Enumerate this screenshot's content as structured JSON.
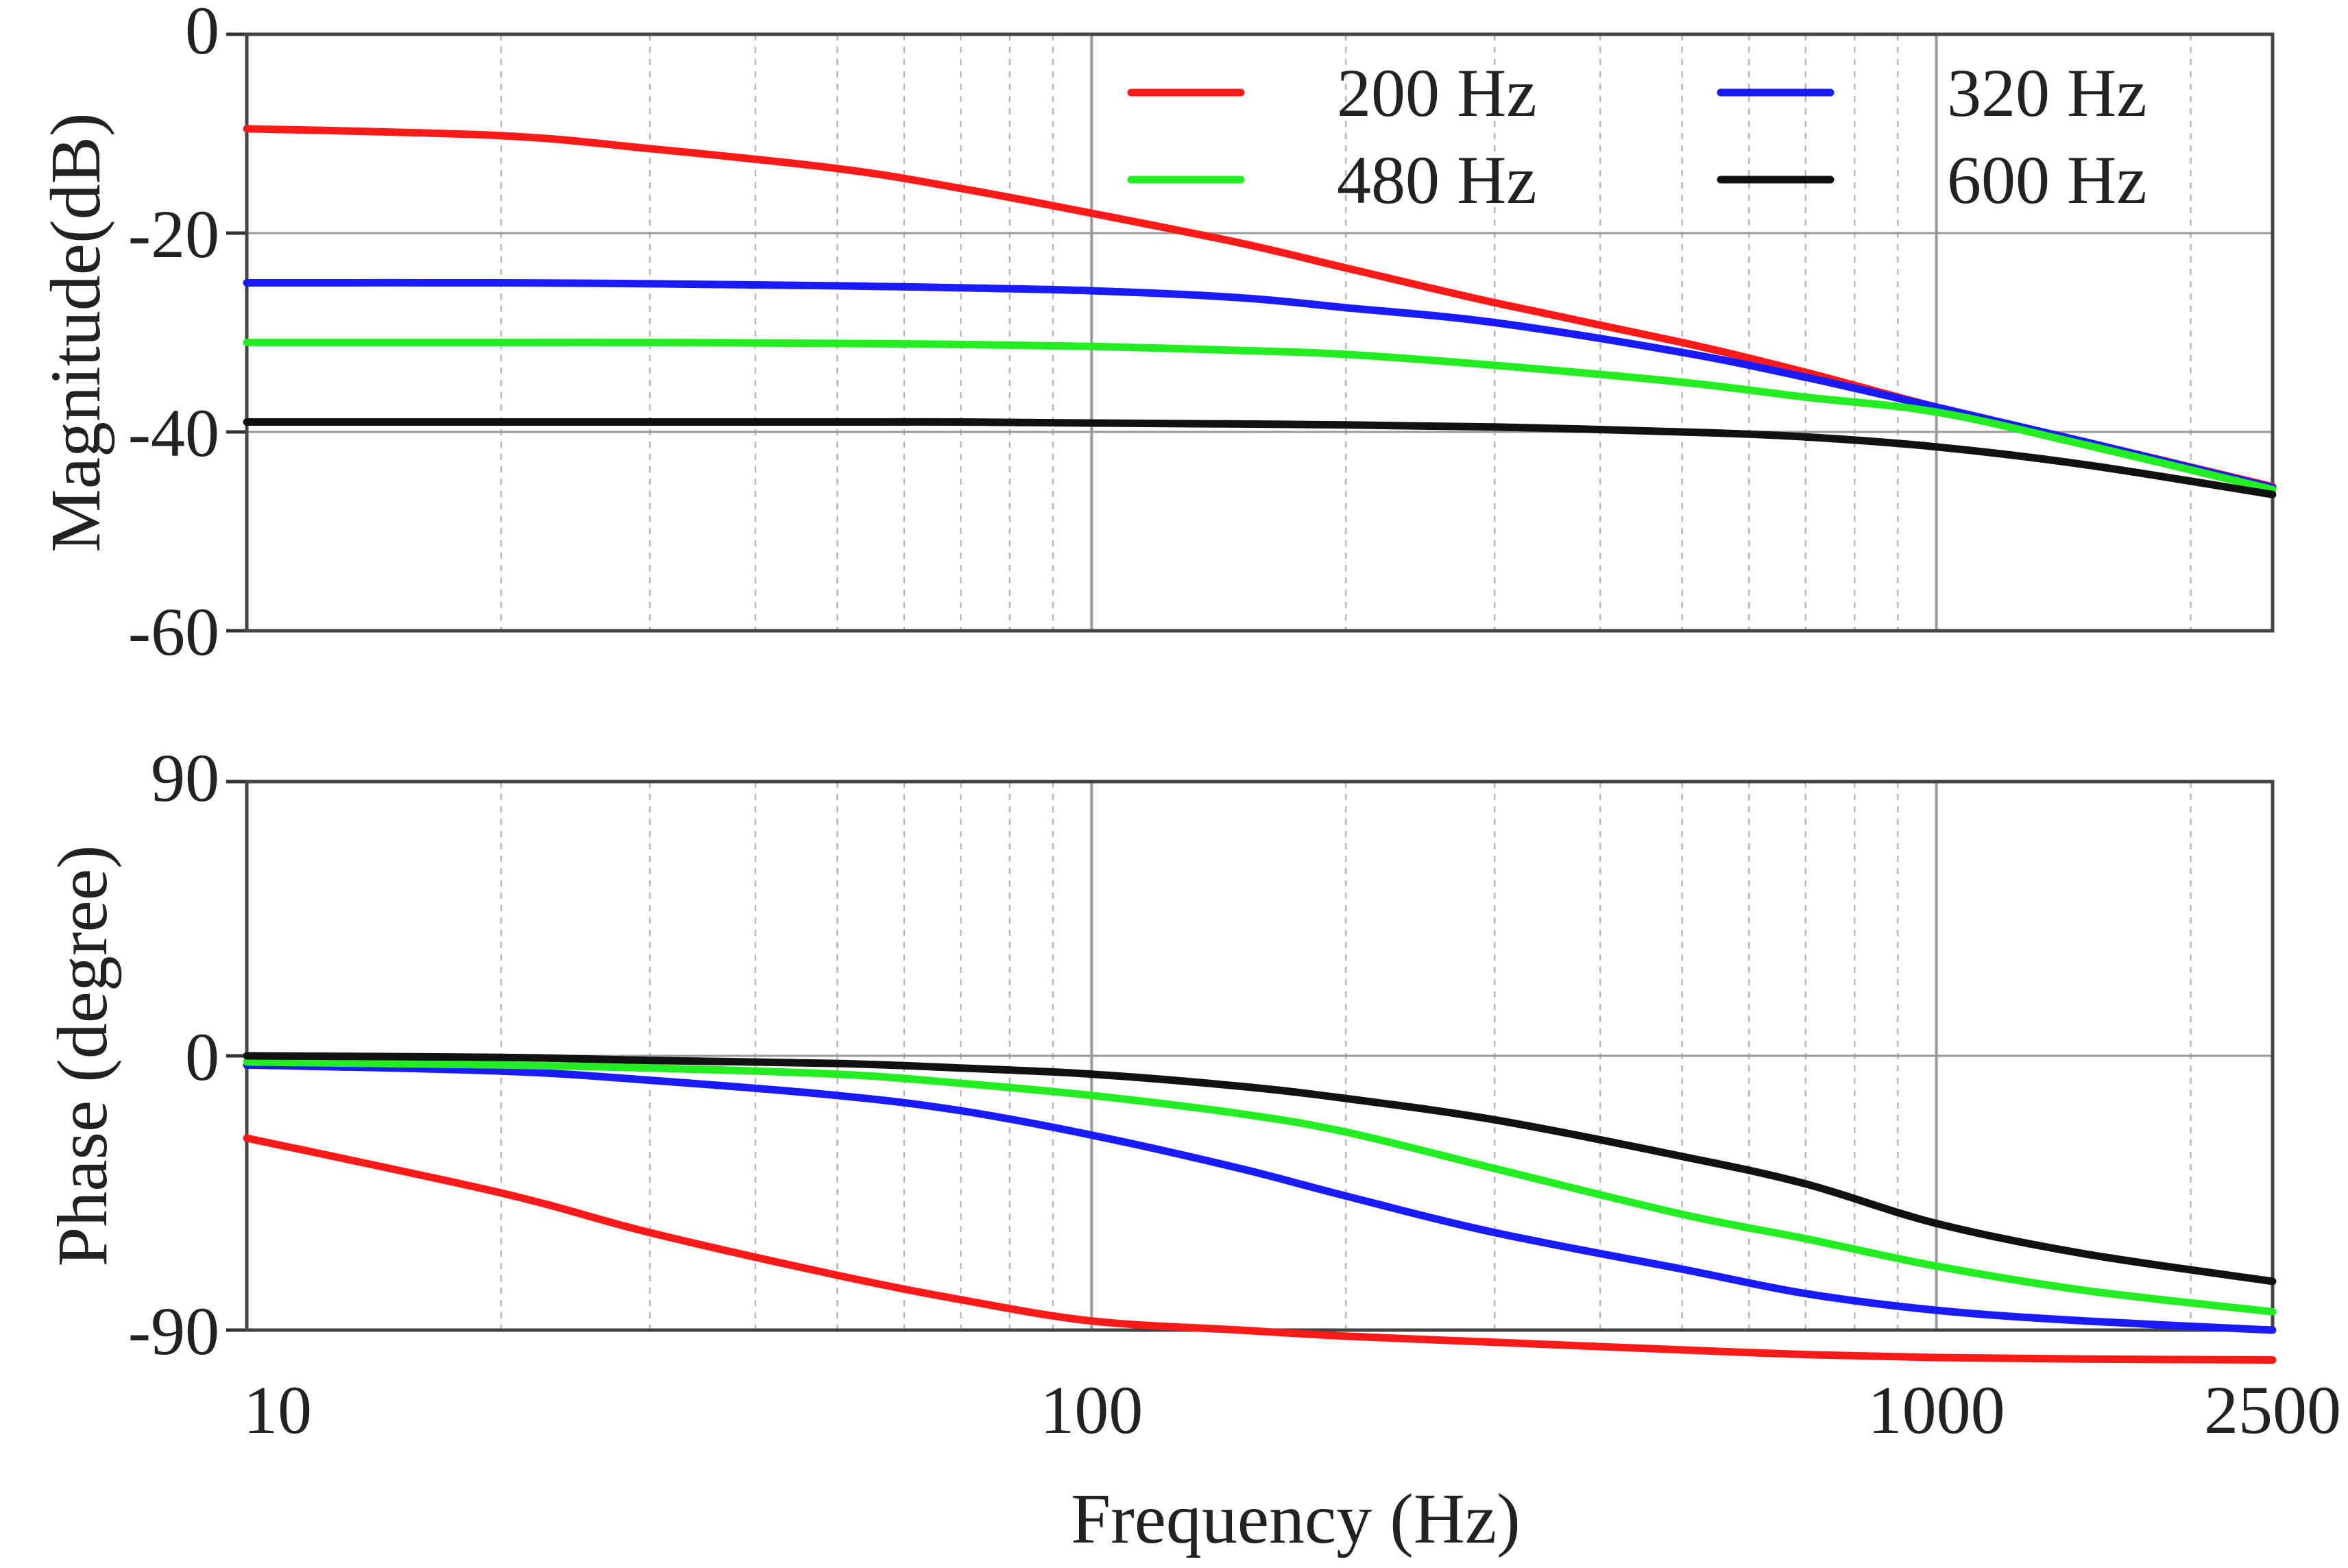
{
  "chart_data": [
    {
      "id": "magnitude",
      "type": "line",
      "title": "",
      "xlabel": "",
      "ylabel": "Magnitude(dB)",
      "xscale": "log",
      "xlim": [
        10,
        2500
      ],
      "ylim": [
        -60,
        0
      ],
      "yticks": [
        0,
        -20,
        -40,
        -60
      ],
      "ytick_labels": [
        "0",
        "-20",
        "-40",
        "-60"
      ],
      "grid": true,
      "legend_position": "top-right",
      "series": [
        {
          "name": "200 Hz",
          "color": "#ff1a1a",
          "x": [
            10,
            20,
            30,
            50,
            70,
            100,
            150,
            200,
            300,
            500,
            700,
            1000,
            1500,
            2500
          ],
          "y": [
            -9.5,
            -10.2,
            -11.5,
            -13.5,
            -15.5,
            -18,
            -21,
            -23.5,
            -27,
            -31,
            -34,
            -37.5,
            -41,
            -45.5
          ]
        },
        {
          "name": "320 Hz",
          "color": "#1a1aff",
          "x": [
            10,
            20,
            30,
            50,
            70,
            100,
            150,
            200,
            300,
            500,
            700,
            1000,
            1500,
            2500
          ],
          "y": [
            -25,
            -25,
            -25.1,
            -25.3,
            -25.5,
            -25.8,
            -26.5,
            -27.5,
            -29,
            -32,
            -34.5,
            -37.5,
            -41,
            -45.6
          ]
        },
        {
          "name": "480 Hz",
          "color": "#22ee22",
          "x": [
            10,
            20,
            30,
            50,
            70,
            100,
            150,
            200,
            300,
            500,
            700,
            1000,
            1500,
            2500
          ],
          "y": [
            -31,
            -31,
            -31,
            -31.1,
            -31.2,
            -31.4,
            -31.8,
            -32.2,
            -33.3,
            -35,
            -36.5,
            -38,
            -41.3,
            -45.8
          ]
        },
        {
          "name": "600 Hz",
          "color": "#111111",
          "x": [
            10,
            20,
            30,
            50,
            70,
            100,
            150,
            200,
            300,
            500,
            700,
            1000,
            1500,
            2500
          ],
          "y": [
            -39,
            -39,
            -39,
            -39,
            -39,
            -39.1,
            -39.2,
            -39.3,
            -39.5,
            -40,
            -40.5,
            -41.5,
            -43.3,
            -46.3
          ]
        }
      ]
    },
    {
      "id": "phase",
      "type": "line",
      "title": "",
      "xlabel": "Frequency (Hz)",
      "ylabel": "Phase (degree)",
      "xscale": "log",
      "xlim": [
        10,
        2500
      ],
      "ylim": [
        -90,
        90
      ],
      "yticks": [
        90,
        0,
        -90
      ],
      "ytick_labels": [
        "90",
        "0",
        "-90"
      ],
      "xticks": [
        10,
        100,
        1000,
        2500
      ],
      "xtick_labels": [
        "10",
        "100",
        "1000",
        "2500"
      ],
      "grid": true,
      "series": [
        {
          "name": "200 Hz",
          "color": "#ff1a1a",
          "x": [
            10,
            20,
            30,
            50,
            70,
            100,
            150,
            200,
            300,
            500,
            700,
            1000,
            1500,
            2500
          ],
          "y": [
            -27,
            -45,
            -58,
            -72,
            -80,
            -87,
            -90,
            -92,
            -94,
            -96.5,
            -98,
            -99,
            -99.5,
            -99.8
          ]
        },
        {
          "name": "320 Hz",
          "color": "#1a1aff",
          "x": [
            10,
            20,
            30,
            50,
            70,
            100,
            150,
            200,
            300,
            500,
            700,
            1000,
            1500,
            2500
          ],
          "y": [
            -3,
            -5,
            -8,
            -13,
            -18,
            -26,
            -37,
            -46,
            -58,
            -70,
            -78,
            -83.5,
            -87,
            -90
          ]
        },
        {
          "name": "480 Hz",
          "color": "#22ee22",
          "x": [
            10,
            20,
            30,
            50,
            70,
            100,
            150,
            200,
            300,
            500,
            700,
            1000,
            1500,
            2500
          ],
          "y": [
            -2,
            -3,
            -4,
            -6,
            -9,
            -13,
            -19,
            -25,
            -37,
            -52,
            -60,
            -69,
            -77,
            -84
          ]
        },
        {
          "name": "600 Hz",
          "color": "#111111",
          "x": [
            10,
            20,
            30,
            50,
            70,
            100,
            150,
            200,
            300,
            500,
            700,
            1000,
            1500,
            2500
          ],
          "y": [
            0,
            -0.5,
            -1.5,
            -2.5,
            -4,
            -6,
            -10,
            -14,
            -21,
            -33,
            -42,
            -55,
            -65,
            -74
          ]
        }
      ]
    }
  ]
}
